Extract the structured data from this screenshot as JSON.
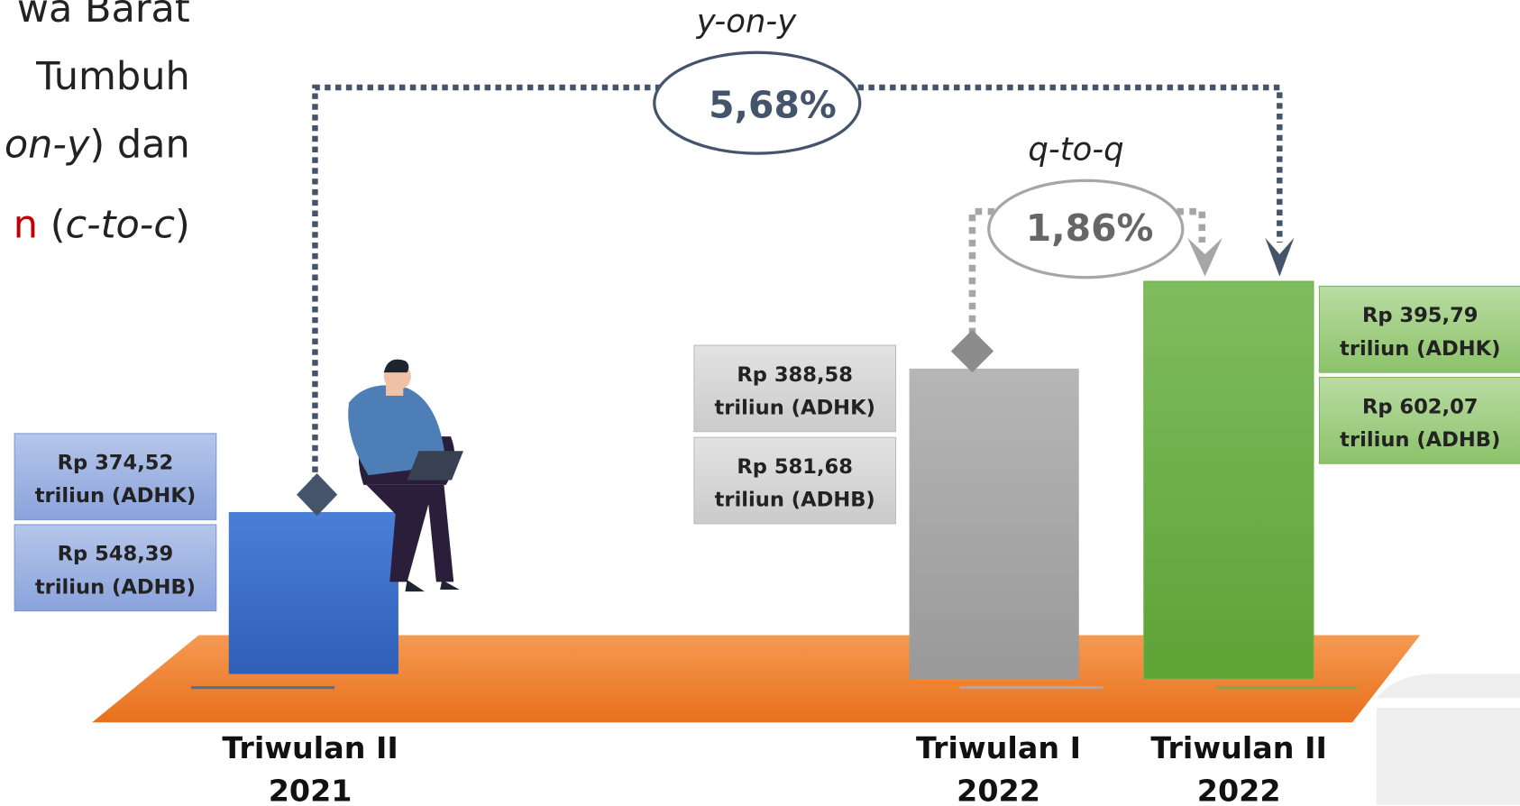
{
  "intro_lines": [
    {
      "segments": [
        {
          "text": "wa Barat",
          "style": "normal"
        }
      ]
    },
    {
      "segments": [
        {
          "text": "Tumbuh",
          "style": "normal"
        }
      ]
    },
    {
      "segments": [
        {
          "text": "on-y",
          "style": "italic"
        },
        {
          "text": ") dan",
          "style": "normal"
        }
      ]
    },
    {
      "segments": [
        {
          "text": "n",
          "style": "red"
        },
        {
          "text": " (",
          "style": "normal"
        },
        {
          "text": "c-to-c",
          "style": "italic"
        },
        {
          "text": ")",
          "style": "normal"
        }
      ]
    }
  ],
  "growth": {
    "yoy": {
      "label": "y-on-y",
      "value": "5,68%"
    },
    "qtq": {
      "label": "q-to-q",
      "value": "1,86%"
    }
  },
  "periods": [
    {
      "name": [
        "Triwulan II",
        "2021"
      ],
      "adhk": [
        "Rp 374,52",
        "triliun (ADHK)"
      ],
      "adhb": [
        "Rp 548,39",
        "triliun (ADHB)"
      ]
    },
    {
      "name": [
        "Triwulan I",
        "2022"
      ],
      "adhk": [
        "Rp 388,58",
        "triliun (ADHK)"
      ],
      "adhb": [
        "Rp 581,68",
        "triliun (ADHB)"
      ]
    },
    {
      "name": [
        "Triwulan II",
        "2022"
      ],
      "adhk": [
        "Rp 395,79",
        "triliun (ADHK)"
      ],
      "adhb": [
        "Rp 602,07",
        "triliun (ADHB)"
      ]
    }
  ]
}
